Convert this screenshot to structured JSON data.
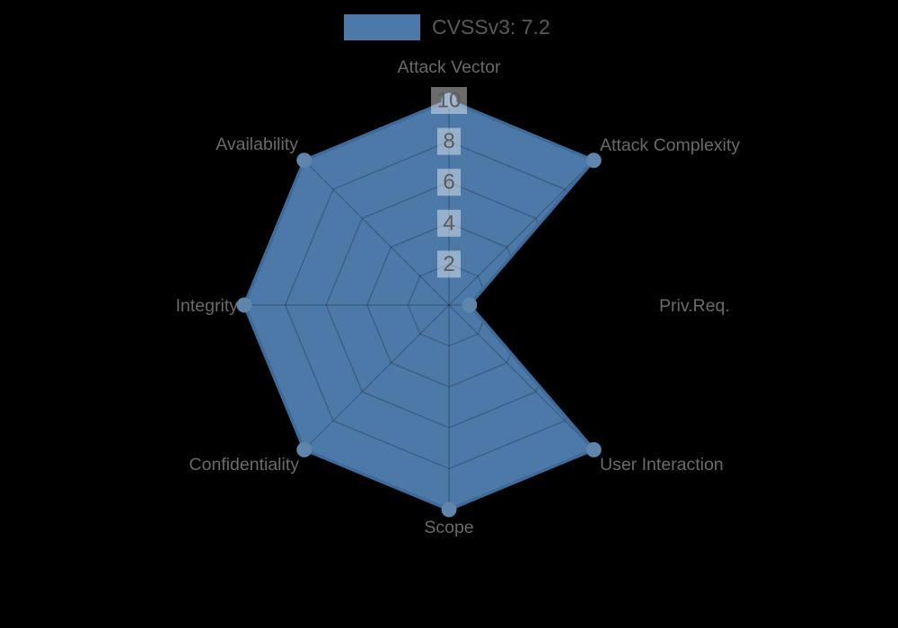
{
  "legend": {
    "label": "CVSSv3: 7.2",
    "swatch_color": "#4d79a8"
  },
  "chart_data": {
    "type": "radar",
    "categories": [
      "Attack Vector",
      "Attack Complexity",
      "Priv.Req.",
      "User Interaction",
      "Scope",
      "Confidentiality",
      "Integrity",
      "Availability"
    ],
    "series": [
      {
        "name": "CVSSv3: 7.2",
        "values": [
          10,
          10,
          1,
          10,
          10,
          10,
          10,
          10
        ]
      }
    ],
    "r_axis": {
      "min": 0,
      "max": 10,
      "ticks": [
        2,
        4,
        6,
        8,
        10
      ]
    },
    "legend_position": "top-center",
    "grid": true,
    "colors": {
      "fill": "#4d79a8",
      "border": "#3f6b9a",
      "marker": "#5f85ad",
      "grid_line": "rgba(0,0,0,0.2)",
      "tick_backdrop": "rgba(255,255,255,0.42)",
      "tick_text": "#5b5b5b",
      "label_text": "#6a6a6a",
      "legend_text": "#595959",
      "background": "#000000"
    }
  }
}
